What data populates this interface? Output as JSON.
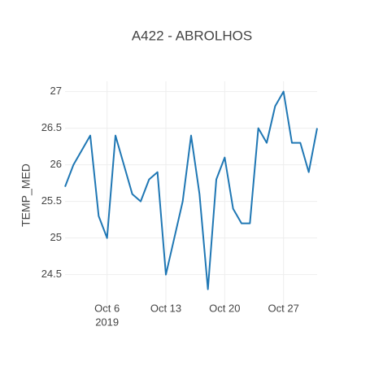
{
  "chart_data": {
    "type": "line",
    "title": "A422 - ABROLHOS",
    "y_label": "TEMP_MED",
    "x": [
      "2019-10-01",
      "2019-10-02",
      "2019-10-03",
      "2019-10-04",
      "2019-10-05",
      "2019-10-06",
      "2019-10-07",
      "2019-10-08",
      "2019-10-09",
      "2019-10-10",
      "2019-10-11",
      "2019-10-12",
      "2019-10-13",
      "2019-10-14",
      "2019-10-15",
      "2019-10-16",
      "2019-10-17",
      "2019-10-18",
      "2019-10-19",
      "2019-10-20",
      "2019-10-21",
      "2019-10-22",
      "2019-10-23",
      "2019-10-24",
      "2019-10-25",
      "2019-10-26",
      "2019-10-27",
      "2019-10-28",
      "2019-10-29",
      "2019-10-30",
      "2019-10-31"
    ],
    "series": [
      {
        "name": "TEMP_MED",
        "color": "#1f77b4",
        "values": [
          25.7,
          26.0,
          26.2,
          26.4,
          25.3,
          25.0,
          26.4,
          26.0,
          25.6,
          25.5,
          25.8,
          25.9,
          24.5,
          25.0,
          25.5,
          26.4,
          25.6,
          24.3,
          25.8,
          26.1,
          25.4,
          25.2,
          25.2,
          26.5,
          26.3,
          26.8,
          27.0,
          26.3,
          26.3,
          25.9,
          26.5
        ]
      }
    ],
    "xlim": [
      "2019-10-01",
      "2019-10-31"
    ],
    "xticks": [
      {
        "value": "2019-10-06",
        "label": "Oct 6",
        "sublabel": "2019"
      },
      {
        "value": "2019-10-13",
        "label": "Oct 13"
      },
      {
        "value": "2019-10-20",
        "label": "Oct 20"
      },
      {
        "value": "2019-10-27",
        "label": "Oct 27"
      }
    ],
    "ylim": [
      24.03,
      27.14
    ],
    "yticks": [
      24.5,
      25,
      25.5,
      26,
      26.5,
      27
    ],
    "grid": true
  }
}
